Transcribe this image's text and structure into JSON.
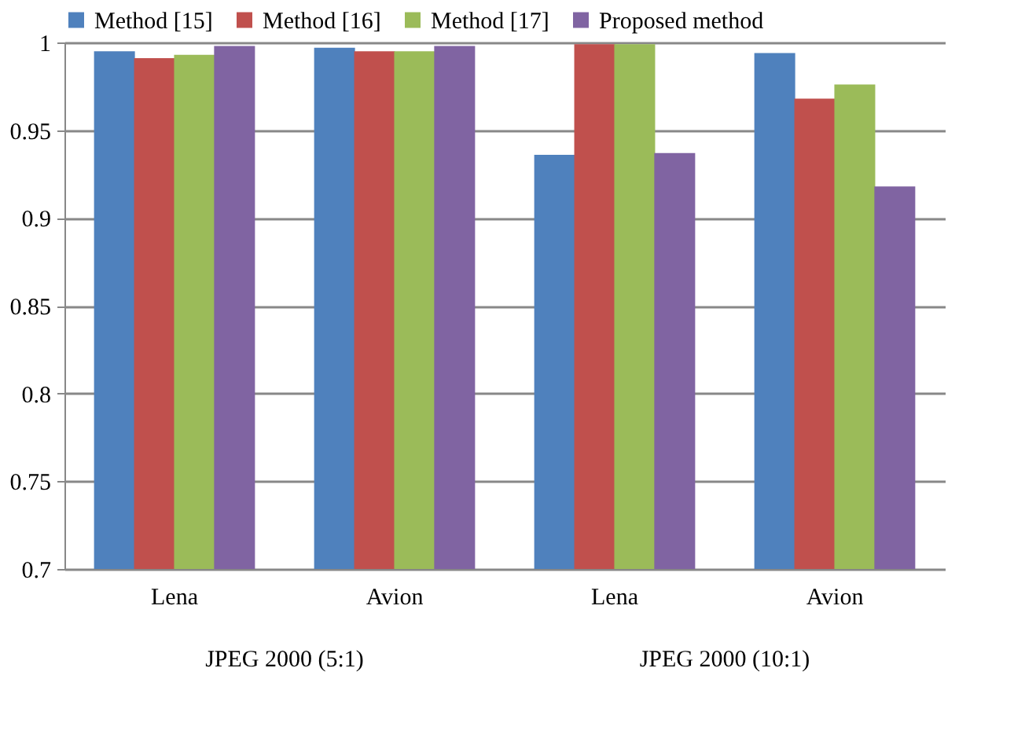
{
  "chart_data": {
    "type": "bar",
    "categories": [
      "Lena",
      "Avion",
      "Lena",
      "Avion"
    ],
    "series": [
      {
        "name": "Method [15]",
        "color": "#4f81bd",
        "values": [
          0.995,
          0.997,
          0.936,
          0.994
        ]
      },
      {
        "name": "Method [16]",
        "color": "#c0504d",
        "values": [
          0.991,
          0.995,
          0.999,
          0.968
        ]
      },
      {
        "name": "Method [17]",
        "color": "#9bbb59",
        "values": [
          0.993,
          0.995,
          0.999,
          0.976
        ]
      },
      {
        "name": "Proposed method",
        "color": "#8064a2",
        "values": [
          0.998,
          0.998,
          0.937,
          0.918
        ]
      }
    ],
    "annotations": [
      "JPEG 2000 (5:1)",
      "JPEG 2000 (10:1)"
    ],
    "ylim": [
      0.7,
      1
    ],
    "yticks": [
      0.7,
      0.75,
      0.8,
      0.85,
      0.9,
      0.95,
      1
    ],
    "grid": "y",
    "legend": "top"
  }
}
